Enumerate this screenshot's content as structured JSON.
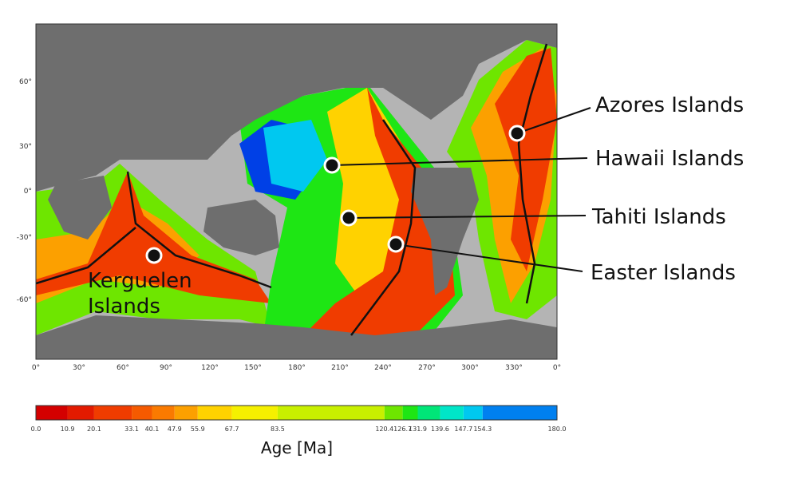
{
  "map": {
    "lat_ticks": [
      "60°",
      "30°",
      "0°",
      "-30°",
      "-60°"
    ],
    "lon_ticks": [
      "0°",
      "30°",
      "60°",
      "90°",
      "120°",
      "150°",
      "180°",
      "210°",
      "240°",
      "270°",
      "300°",
      "330°",
      "0°"
    ]
  },
  "hotspots": [
    {
      "name": "Azores Islands",
      "label": "Azores Islands"
    },
    {
      "name": "Hawaii Islands",
      "label": "Hawaii Islands"
    },
    {
      "name": "Tahiti Islands",
      "label": "Tahiti Islands"
    },
    {
      "name": "Easter Islands",
      "label": "Easter Islands"
    },
    {
      "name": "Kerguelen Islands",
      "label_line1": "Kerguelen",
      "label_line2": "Islands"
    }
  ],
  "colorbar": {
    "title": "Age [Ma]",
    "tick_labels": [
      "0.0",
      "10.9",
      "20.1",
      "33.1",
      "40.1",
      "47.9",
      "55.9",
      "67.7",
      "83.5",
      "120.4",
      "126.7",
      "131.9",
      "139.6",
      "147.7",
      "154.3",
      "180.0"
    ],
    "colors": [
      "#d40000",
      "#e31a00",
      "#f03c00",
      "#f55a00",
      "#fa7a00",
      "#fca000",
      "#ffd200",
      "#f5f000",
      "#c8f000",
      "#6ee600",
      "#1ee614",
      "#00e678",
      "#00e6c8",
      "#00c8f0",
      "#0080f0",
      "#0040e6"
    ]
  },
  "colors": {
    "land": "#6e6e6e",
    "shelf": "#b4b4b4",
    "ridge": "#111111",
    "marker": "#ffffff"
  }
}
